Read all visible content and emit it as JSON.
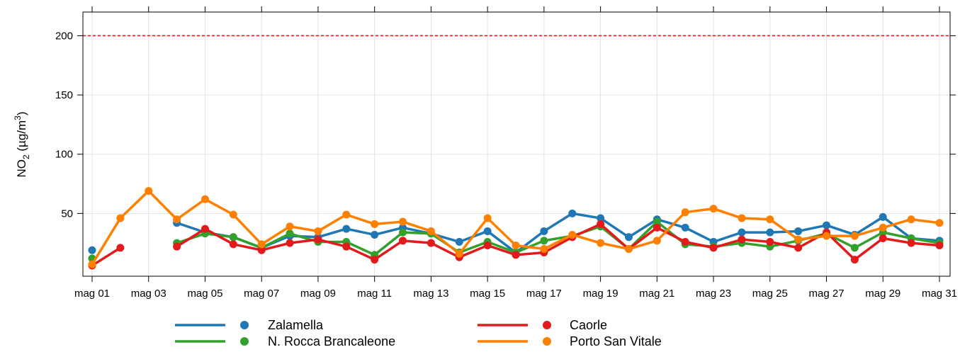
{
  "chart_data": {
    "type": "line",
    "title": "",
    "ylabel": {
      "main": "NO",
      "sub": "2",
      "unit_open": " (µg/m",
      "sup": "3",
      "unit_close": ")"
    },
    "xlabel": "",
    "x": [
      "mag 01",
      "mag 02",
      "mag 03",
      "mag 04",
      "mag 05",
      "mag 06",
      "mag 07",
      "mag 08",
      "mag 09",
      "mag 10",
      "mag 11",
      "mag 12",
      "mag 13",
      "mag 14",
      "mag 15",
      "mag 16",
      "mag 17",
      "mag 18",
      "mag 19",
      "mag 20",
      "mag 21",
      "mag 22",
      "mag 23",
      "mag 24",
      "mag 25",
      "mag 26",
      "mag 27",
      "mag 28",
      "mag 29",
      "mag 30",
      "mag 31"
    ],
    "x_tick_labels": [
      "mag 01",
      "mag 03",
      "mag 05",
      "mag 07",
      "mag 09",
      "mag 11",
      "mag 13",
      "mag 15",
      "mag 17",
      "mag 19",
      "mag 21",
      "mag 23",
      "mag 25",
      "mag 27",
      "mag 29",
      "mag 31"
    ],
    "ylim": [
      -3,
      220
    ],
    "y_ticks": [
      50,
      100,
      150,
      200
    ],
    "grid": true,
    "threshold": {
      "value": 200,
      "color": "#e31a1c",
      "style": "dashed"
    },
    "legend_position": "bottom",
    "series": [
      {
        "name": "Zalamella",
        "color": "#1f78b4",
        "values": [
          19,
          null,
          null,
          42,
          34,
          30,
          21,
          31,
          30,
          37,
          32,
          38,
          33,
          26,
          35,
          17,
          35,
          50,
          46,
          30,
          45,
          38,
          26,
          34,
          34,
          35,
          40,
          32,
          47,
          29,
          27
        ]
      },
      {
        "name": "N. Rocca Brancaleone",
        "color": "#33a02c",
        "values": [
          12,
          null,
          null,
          25,
          33,
          30,
          21,
          33,
          26,
          26,
          15,
          34,
          33,
          17,
          26,
          17,
          27,
          31,
          39,
          20,
          43,
          24,
          22,
          25,
          22,
          27,
          33,
          21,
          34,
          29,
          25
        ]
      },
      {
        "name": "Caorle",
        "color": "#e31a1c",
        "values": [
          6,
          21,
          null,
          22,
          37,
          24,
          19,
          25,
          28,
          22,
          11,
          27,
          25,
          13,
          23,
          15,
          17,
          30,
          41,
          20,
          38,
          26,
          21,
          28,
          26,
          21,
          34,
          11,
          29,
          25,
          23
        ]
      },
      {
        "name": "Porto San Vitale",
        "color": "#ff7f00",
        "values": [
          7,
          46,
          69,
          45,
          62,
          49,
          24,
          39,
          35,
          49,
          41,
          43,
          35,
          16,
          46,
          23,
          20,
          32,
          25,
          20,
          27,
          51,
          54,
          46,
          45,
          28,
          31,
          31,
          38,
          45,
          42
        ]
      }
    ]
  }
}
